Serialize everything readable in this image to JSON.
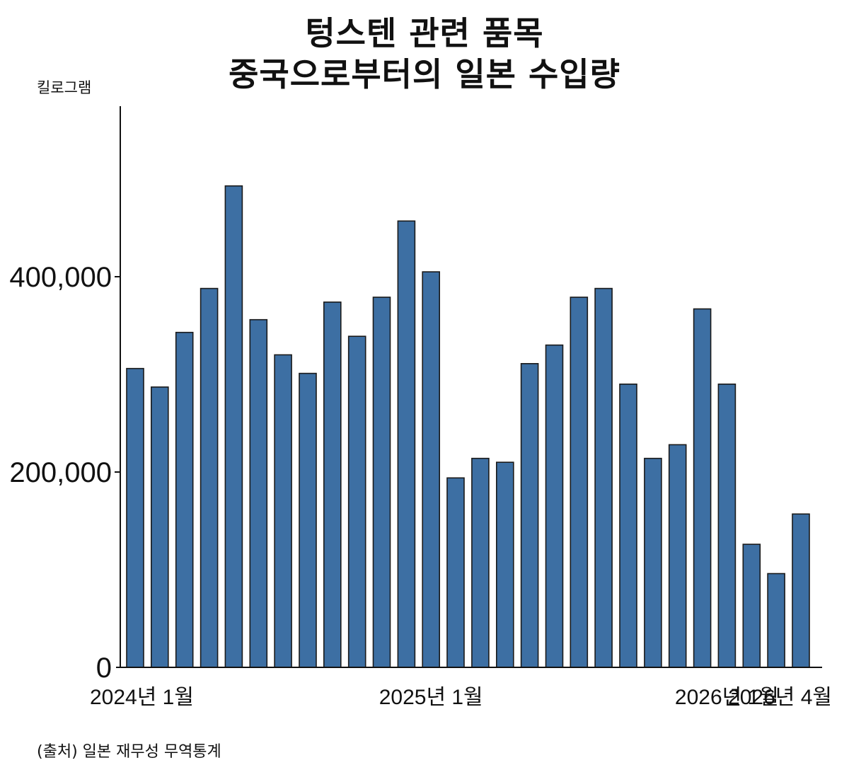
{
  "title_line1": "텅스텐 관련 품목",
  "title_line2": "중국으로부터의 일본 수입량",
  "unit_label": "킬로그램",
  "source": "(출처) 일본 재무성 무역통계",
  "colors": {
    "bar": "#3d6fa3",
    "bar_border": "#1a1a1a",
    "axis": "#111111"
  },
  "chart_data": {
    "type": "bar",
    "title": "텅스텐 관련 품목 중국으로부터의 일본 수입량",
    "ylabel": "킬로그램",
    "ylim": [
      0,
      600000
    ],
    "y_ticks": [
      {
        "value": 0,
        "label": "0"
      },
      {
        "value": 200000,
        "label": "200,000"
      },
      {
        "value": 400000,
        "label": "400,000"
      }
    ],
    "x_tick_labels": [
      {
        "index": 0,
        "label": "2024년 1월"
      },
      {
        "index": 12,
        "label": "2025년 1월"
      },
      {
        "index": 24,
        "label": "2026년 1월"
      },
      {
        "index": 27,
        "label": "2026년 4월"
      }
    ],
    "categories": [
      "2024-01",
      "2024-02",
      "2024-03",
      "2024-04",
      "2024-05",
      "2024-06",
      "2024-07",
      "2024-08",
      "2024-09",
      "2024-10",
      "2024-11",
      "2024-12",
      "2025-01",
      "2025-02",
      "2025-03",
      "2025-04",
      "2025-05",
      "2025-06",
      "2025-07",
      "2025-08",
      "2025-09",
      "2025-10",
      "2025-11",
      "2025-12",
      "2026-01",
      "2026-02",
      "2026-03",
      "2026-04"
    ],
    "values": [
      306000,
      287000,
      343000,
      388000,
      493000,
      356000,
      320000,
      301000,
      374000,
      339000,
      379000,
      457000,
      405000,
      194000,
      214000,
      210000,
      311000,
      330000,
      379000,
      388000,
      290000,
      214000,
      228000,
      367000,
      290000,
      126000,
      96000,
      157000
    ],
    "grid": false,
    "legend": "none"
  }
}
